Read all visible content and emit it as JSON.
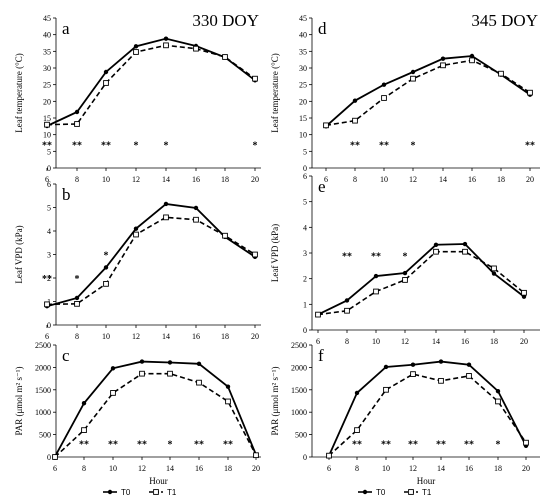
{
  "legend": {
    "items": [
      "T0",
      "T1"
    ]
  },
  "chart_data": [
    {
      "type": "line",
      "panel": "a",
      "annotation": "330 DOY",
      "ylabel": "Leaf temperature (°C)",
      "xlabel": "",
      "x": [
        6,
        8,
        10,
        12,
        14,
        16,
        18,
        20
      ],
      "ylim": [
        0,
        45
      ],
      "yticks": [
        0,
        5,
        10,
        15,
        20,
        25,
        30,
        35,
        40,
        45
      ],
      "xticks": [
        6,
        8,
        10,
        12,
        14,
        16,
        18,
        20
      ],
      "series": [
        {
          "name": "T0",
          "values": [
            12.6,
            16.8,
            28.8,
            36.5,
            38.8,
            36.6,
            33.2,
            26.3
          ]
        },
        {
          "name": "T1",
          "values": [
            13.0,
            13.2,
            25.5,
            34.8,
            36.8,
            35.8,
            33.3,
            26.8
          ]
        }
      ],
      "significance": [
        {
          "x": 6,
          "mark": "**"
        },
        {
          "x": 8,
          "mark": "**"
        },
        {
          "x": 10,
          "mark": "**"
        },
        {
          "x": 12,
          "mark": "*"
        },
        {
          "x": 14,
          "mark": "*"
        },
        {
          "x": 20,
          "mark": "*"
        }
      ],
      "sig_y": 7
    },
    {
      "type": "line",
      "panel": "d",
      "annotation": "345 DOY",
      "ylabel": "Leaf temperature (°C)",
      "xlabel": "",
      "x": [
        6,
        8,
        10,
        12,
        14,
        16,
        18,
        20
      ],
      "ylim": [
        0,
        45
      ],
      "yticks": [
        0,
        5,
        10,
        15,
        20,
        25,
        30,
        35,
        40,
        45
      ],
      "xticks": [
        6,
        8,
        10,
        12,
        14,
        16,
        18,
        20
      ],
      "series": [
        {
          "name": "T0",
          "values": [
            12.5,
            20.2,
            25.0,
            28.8,
            32.8,
            33.6,
            28.0,
            22.0
          ]
        },
        {
          "name": "T1",
          "values": [
            12.8,
            14.2,
            21.0,
            26.8,
            30.8,
            32.3,
            28.3,
            22.6
          ]
        }
      ],
      "significance": [
        {
          "x": 8,
          "mark": "**"
        },
        {
          "x": 10,
          "mark": "**"
        },
        {
          "x": 12,
          "mark": "*"
        },
        {
          "x": 20,
          "mark": "**"
        }
      ],
      "sig_y": 7
    },
    {
      "type": "line",
      "panel": "b",
      "annotation": "",
      "ylabel": "Leaf VPD (kPa)",
      "xlabel": "",
      "x": [
        6,
        8,
        10,
        12,
        14,
        16,
        18,
        20
      ],
      "ylim": [
        0,
        6
      ],
      "yticks": [
        0,
        1,
        2,
        3,
        4,
        5,
        6
      ],
      "xticks": [
        6,
        8,
        10,
        12,
        14,
        16,
        18,
        20
      ],
      "series": [
        {
          "name": "T0",
          "values": [
            0.8,
            1.15,
            2.45,
            4.1,
            5.15,
            4.98,
            3.75,
            2.9
          ]
        },
        {
          "name": "T1",
          "values": [
            0.88,
            0.9,
            1.75,
            3.85,
            4.58,
            4.48,
            3.8,
            3.0
          ]
        }
      ],
      "significance": [
        {
          "x": 6,
          "mark": "**",
          "y": 2.0
        },
        {
          "x": 8,
          "mark": "*",
          "y": 2.0
        },
        {
          "x": 10,
          "mark": "*",
          "y": 3.0
        }
      ]
    },
    {
      "type": "line",
      "panel": "e",
      "annotation": "",
      "ylabel": "Leaf VPD (kPa)",
      "xlabel": "",
      "x": [
        6,
        8,
        10,
        12,
        14,
        16,
        18,
        20
      ],
      "ylim": [
        0,
        6
      ],
      "yticks": [
        0,
        1,
        2,
        3,
        4,
        5,
        6
      ],
      "xticks": [
        6,
        8,
        10,
        12,
        14,
        16,
        18,
        20
      ],
      "series": [
        {
          "name": "T0",
          "values": [
            0.6,
            1.15,
            2.1,
            2.22,
            3.32,
            3.35,
            2.2,
            1.3
          ]
        },
        {
          "name": "T1",
          "values": [
            0.6,
            0.75,
            1.5,
            1.95,
            3.05,
            3.05,
            2.4,
            1.45
          ]
        }
      ],
      "significance": [
        {
          "x": 8,
          "mark": "**",
          "y": 2.9
        },
        {
          "x": 10,
          "mark": "**",
          "y": 2.9
        },
        {
          "x": 12,
          "mark": "*",
          "y": 2.9
        }
      ]
    },
    {
      "type": "line",
      "panel": "c",
      "annotation": "",
      "ylabel": "PAR (μmol m² s⁻¹)",
      "xlabel": "Hour",
      "x": [
        6,
        8,
        10,
        12,
        14,
        16,
        18,
        20
      ],
      "ylim": [
        0,
        2500
      ],
      "yticks": [
        0,
        500,
        1000,
        1500,
        2000,
        2500
      ],
      "xticks": [
        6,
        8,
        10,
        12,
        14,
        16,
        18,
        20
      ],
      "series": [
        {
          "name": "T0",
          "values": [
            10,
            1200,
            1980,
            2130,
            2110,
            2080,
            1570,
            50
          ]
        },
        {
          "name": "T1",
          "values": [
            0,
            600,
            1430,
            1860,
            1860,
            1660,
            1240,
            40
          ]
        }
      ],
      "significance": [
        {
          "x": 8,
          "mark": "**"
        },
        {
          "x": 10,
          "mark": "**"
        },
        {
          "x": 12,
          "mark": "**"
        },
        {
          "x": 14,
          "mark": "*"
        },
        {
          "x": 16,
          "mark": "**"
        },
        {
          "x": 18,
          "mark": "**"
        }
      ],
      "sig_y": 300
    },
    {
      "type": "line",
      "panel": "f",
      "annotation": "",
      "ylabel": "PAR (μmol m² s⁻¹)",
      "xlabel": "Hour",
      "x": [
        6,
        8,
        10,
        12,
        14,
        16,
        18,
        20
      ],
      "ylim": [
        0,
        2500
      ],
      "yticks": [
        0,
        500,
        1000,
        1500,
        2000,
        2500
      ],
      "xticks": [
        6,
        8,
        10,
        12,
        14,
        16,
        18,
        20
      ],
      "series": [
        {
          "name": "T0",
          "values": [
            30,
            1430,
            2010,
            2060,
            2130,
            2060,
            1470,
            250
          ]
        },
        {
          "name": "T1",
          "values": [
            30,
            600,
            1500,
            1850,
            1700,
            1810,
            1240,
            320
          ]
        }
      ],
      "significance": [
        {
          "x": 8,
          "mark": "**"
        },
        {
          "x": 10,
          "mark": "**"
        },
        {
          "x": 12,
          "mark": "**"
        },
        {
          "x": 14,
          "mark": "**"
        },
        {
          "x": 16,
          "mark": "**"
        },
        {
          "x": 18,
          "mark": "*"
        }
      ],
      "sig_y": 300
    }
  ]
}
